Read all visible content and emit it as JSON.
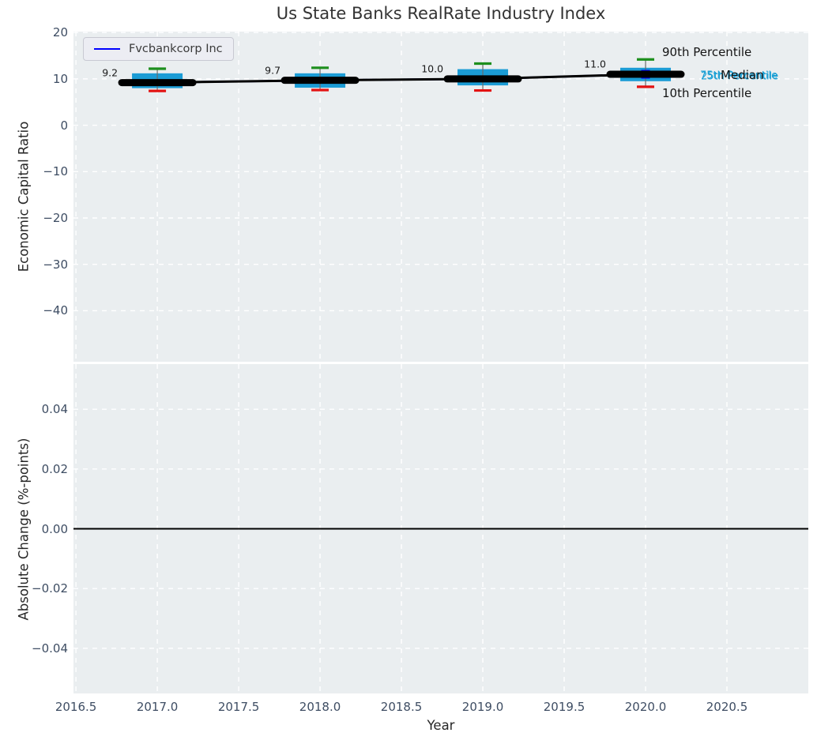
{
  "legend": {
    "label": "Fvcbankcorp Inc",
    "line_color": "#0000ff"
  },
  "colors": {
    "plot_background": "#eaeef0",
    "grid": "#ffffff",
    "box_fill": "#1b9cd5",
    "p90_cap": "#1d8f1d",
    "p10_cap": "#e31212",
    "median_line": "#000000",
    "company_line": "#0000ff",
    "tick_label": "#3e4d63",
    "axis_label": "#262626",
    "title": "#333333",
    "annotation_cyan": "#1a9fd4",
    "annotation_black": "#141414",
    "zero_line": "#000000"
  },
  "chart_data": {
    "type": "boxplot",
    "title": "Us State Banks RealRate Industry Index",
    "x": {
      "label": "Year",
      "lim": [
        2016.485,
        2121.0
      ],
      "lim_actual": [
        2016.485,
        2021.0
      ],
      "ticks": [
        {
          "value": 2016.5,
          "label": "2016.5"
        },
        {
          "value": 2017.0,
          "label": "2017.0"
        },
        {
          "value": 2017.5,
          "label": "2017.5"
        },
        {
          "value": 2018.0,
          "label": "2018.0"
        },
        {
          "value": 2018.5,
          "label": "2018.5"
        },
        {
          "value": 2019.0,
          "label": "2019.0"
        },
        {
          "value": 2019.5,
          "label": "2019.5"
        },
        {
          "value": 2020.0,
          "label": "2020.0"
        },
        {
          "value": 2020.5,
          "label": "2020.5"
        }
      ]
    },
    "panels": [
      {
        "name": "economic-capital-ratio",
        "ylabel": "Economic Capital Ratio",
        "ylim": [
          -51,
          20.2
        ],
        "yticks": [
          {
            "value": 20,
            "label": "20"
          },
          {
            "value": 10,
            "label": "10"
          },
          {
            "value": 0,
            "label": "0"
          },
          {
            "value": -10,
            "label": "−10"
          },
          {
            "value": -20,
            "label": "−20"
          },
          {
            "value": -30,
            "label": "−30"
          },
          {
            "value": -40,
            "label": "−40"
          }
        ],
        "boxes": [
          {
            "year": 2017,
            "p10": 7.4,
            "p25": 8.0,
            "median": 9.2,
            "p75": 11.2,
            "p90": 12.2,
            "value_label": "9.2"
          },
          {
            "year": 2018,
            "p10": 7.6,
            "p25": 8.1,
            "median": 9.7,
            "p75": 11.2,
            "p90": 12.4,
            "value_label": "9.7"
          },
          {
            "year": 2019,
            "p10": 7.5,
            "p25": 8.6,
            "median": 10.0,
            "p75": 12.1,
            "p90": 13.3,
            "value_label": "10.0"
          },
          {
            "year": 2020,
            "p10": 8.3,
            "p25": 9.5,
            "median": 11.0,
            "p75": 12.4,
            "p90": 14.2,
            "value_label": "11.0"
          }
        ],
        "company_series": {
          "name": "Fvcbankcorp Inc",
          "points": [
            {
              "x": 2017,
              "y": 9.2
            },
            {
              "x": 2018,
              "y": 9.7
            },
            {
              "x": 2019,
              "y": 10.0
            },
            {
              "x": 2020,
              "y": 11.0
            }
          ]
        },
        "annotations": [
          {
            "id": "p90-label",
            "text": "90th Percentile",
            "style": "black"
          },
          {
            "id": "p75-label",
            "text": "75th Percentile",
            "style": "cyan"
          },
          {
            "id": "p25-label",
            "text": "25th Percentile",
            "style": "cyan"
          },
          {
            "id": "median-label",
            "text": "Median",
            "style": "black"
          },
          {
            "id": "p10-label",
            "text": "10th Percentile",
            "style": "black"
          }
        ]
      },
      {
        "name": "absolute-change",
        "ylabel": "Absolute Change (%-points)",
        "ylim": [
          -0.0551,
          0.0551
        ],
        "yticks": [
          {
            "value": 0.04,
            "label": "0.04"
          },
          {
            "value": 0.02,
            "label": "0.02"
          },
          {
            "value": 0.0,
            "label": "0.00"
          },
          {
            "value": -0.02,
            "label": "−0.02"
          },
          {
            "value": -0.04,
            "label": "−0.04"
          }
        ],
        "zero_line": 0
      }
    ]
  }
}
